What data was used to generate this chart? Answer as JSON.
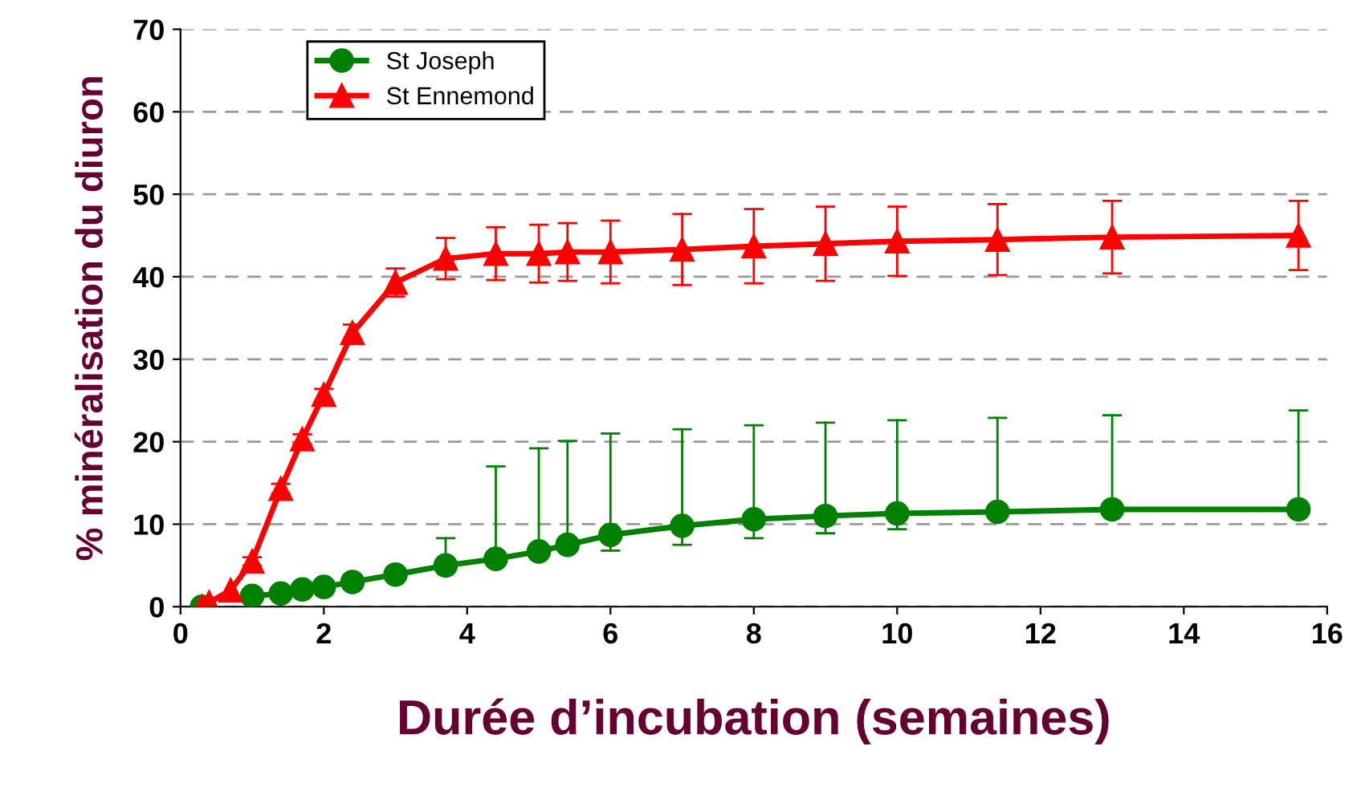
{
  "chart_data": {
    "type": "line",
    "xlabel": "Durée d’incubation (semaines)",
    "ylabel": "% minéralisation du diuron",
    "x": [
      0.3,
      0.4,
      0.7,
      1,
      1.4,
      1.7,
      2,
      2.4,
      3,
      3.7,
      4.4,
      5,
      5.4,
      6,
      7,
      8,
      9,
      10,
      11.4,
      13,
      15.6
    ],
    "series": [
      {
        "name": "St Joseph",
        "color": "#008000",
        "marker": "circle",
        "values": [
          0,
          null,
          null,
          1.3,
          1.6,
          2.1,
          2.4,
          3,
          3.9,
          5,
          5.8,
          6.7,
          7.5,
          8.7,
          9.8,
          10.6,
          11,
          11.3,
          11.5,
          11.8,
          11.8
        ],
        "errors": [
          null,
          null,
          null,
          null,
          null,
          null,
          null,
          null,
          null,
          [
            5,
            8.3
          ],
          [
            5.8,
            17
          ],
          [
            6.7,
            19.2
          ],
          [
            7.5,
            20.1
          ],
          [
            6.8,
            21
          ],
          [
            7.5,
            21.5
          ],
          [
            8.3,
            22
          ],
          [
            8.9,
            22.3
          ],
          [
            9.4,
            22.6
          ],
          [
            11.5,
            22.9
          ],
          [
            11.8,
            23.2
          ],
          [
            11.8,
            23.8
          ]
        ]
      },
      {
        "name": "St Ennemond",
        "color": "#ff0000",
        "marker": "triangle",
        "values": [
          0,
          0.5,
          2,
          5.5,
          14.3,
          20.3,
          25.7,
          33.2,
          39.3,
          42.2,
          42.8,
          42.8,
          43,
          43,
          43.3,
          43.7,
          44,
          44.3,
          44.5,
          44.8,
          45
        ],
        "errors": [
          null,
          null,
          null,
          0.5,
          0.6,
          0.6,
          0.7,
          1,
          1.7,
          2.5,
          3.2,
          3.5,
          3.5,
          3.8,
          4.3,
          4.5,
          4.5,
          4.2,
          4.3,
          4.4,
          4.2
        ]
      }
    ],
    "xlim": [
      0,
      16
    ],
    "xticks": [
      0,
      2,
      4,
      6,
      8,
      10,
      12,
      14,
      16
    ],
    "ylim": [
      0,
      70
    ],
    "yticks": [
      0,
      10,
      20,
      30,
      40,
      50,
      60,
      70
    ],
    "grid": "y",
    "legend": "top left",
    "line_style": "solid"
  }
}
